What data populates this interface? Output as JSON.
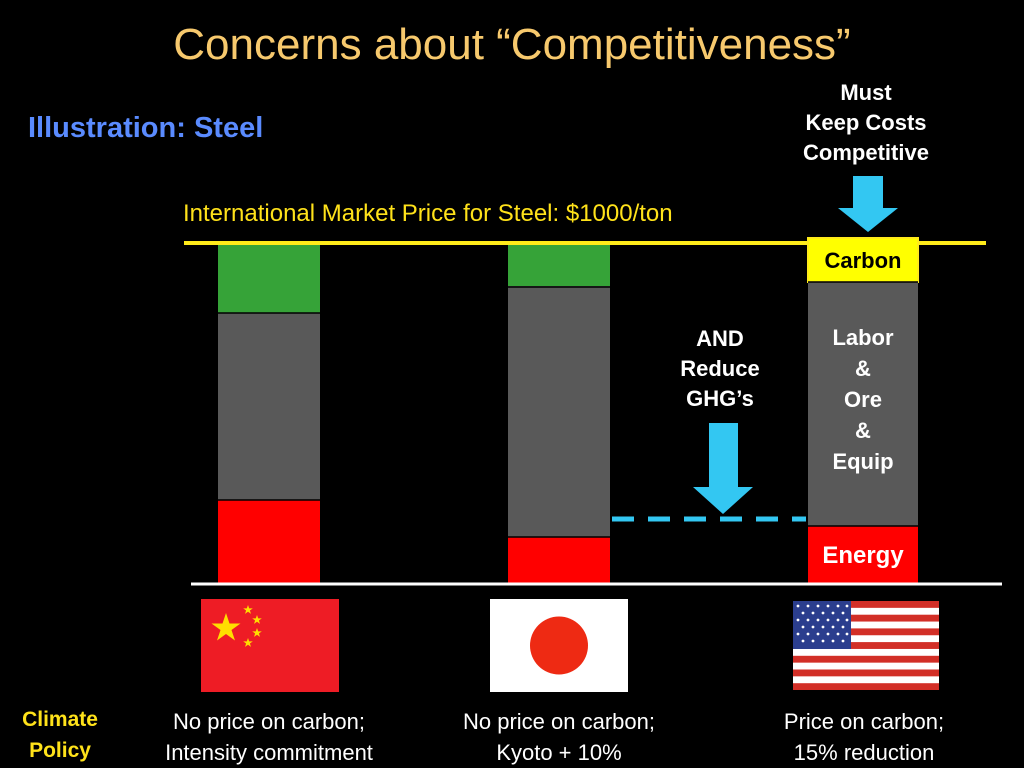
{
  "title": "Concerns about “Competitiveness”",
  "subtitle": "Illustration:  Steel",
  "market_price_label": "International Market Price for Steel:  $1000/ton",
  "callout_must": [
    "Must",
    "Keep Costs",
    "Competitive"
  ],
  "callout_and": [
    "AND",
    "Reduce",
    "GHG’s"
  ],
  "segment_labels": {
    "carbon": "Carbon",
    "labor": [
      "Labor",
      "&",
      "Ore",
      "&",
      "Equip"
    ],
    "energy": "Energy"
  },
  "colors": {
    "energy": "#ff0000",
    "labor": "#595959",
    "margin": "#36a338",
    "carbon": "#ffff00",
    "price_line": "#ffeb1a",
    "arrow": "#33c7f2",
    "title": "#f7c96d",
    "subtitle": "#5a8bff"
  },
  "columns": [
    {
      "country": "China",
      "flag": "china-flag",
      "caption": [
        "No price on carbon;",
        "Intensity commitment"
      ]
    },
    {
      "country": "Japan",
      "flag": "japan-flag",
      "caption": [
        "No price on carbon;",
        "Kyoto + 10%"
      ]
    },
    {
      "country": "United States",
      "flag": "usa-flag",
      "caption": [
        "Price on carbon;",
        "15% reduction"
      ]
    }
  ],
  "climate_policy_label": [
    "Climate",
    "Policy"
  ]
}
